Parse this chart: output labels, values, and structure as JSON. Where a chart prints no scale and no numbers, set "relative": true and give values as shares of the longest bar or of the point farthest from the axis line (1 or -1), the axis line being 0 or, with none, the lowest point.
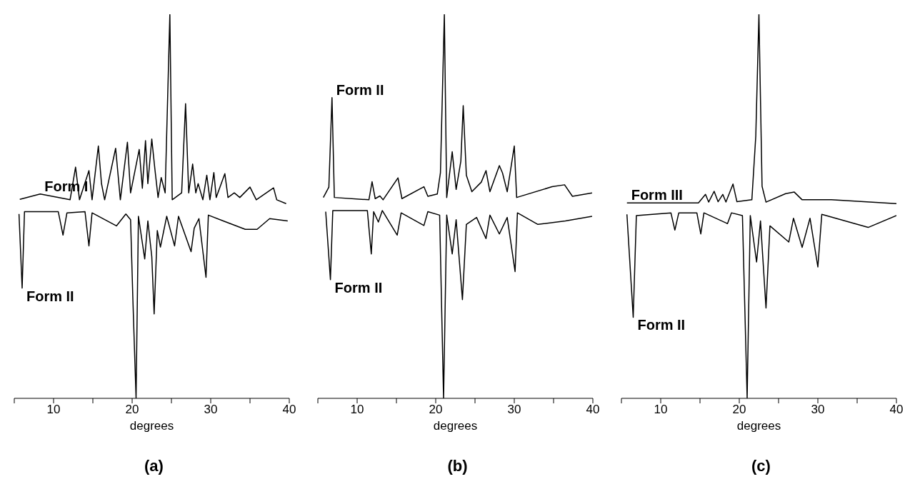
{
  "chart_data": [
    {
      "type": "line",
      "title": "(a)",
      "xlabel": "degrees",
      "relative": true,
      "xlim": [
        5,
        40
      ],
      "xticks": [
        {
          "value": 5,
          "label": null
        },
        10,
        {
          "value": 15,
          "label": null
        },
        20,
        {
          "value": 25,
          "label": null
        },
        30,
        {
          "value": 35,
          "label": null
        },
        40
      ],
      "series": [
        {
          "name": "Form I",
          "color": "#000000",
          "x": [
            5.7,
            8.3,
            12.1,
            12.8,
            13.3,
            14.5,
            14.9,
            15.7,
            16.1,
            16.5,
            17.9,
            18.5,
            19.4,
            19.8,
            20.9,
            21.3,
            21.7,
            22.0,
            22.5,
            22.9,
            23.3,
            23.7,
            24.2,
            24.8,
            25.1,
            26.3,
            26.8,
            27.2,
            27.7,
            28.1,
            28.4,
            29.0,
            29.5,
            29.9,
            30.4,
            30.7,
            31.8,
            32.2,
            33.0,
            33.7,
            35.0,
            35.8,
            38.0,
            38.4,
            39.6
          ],
          "values": [
            0.518,
            0.532,
            0.517,
            0.602,
            0.517,
            0.593,
            0.517,
            0.657,
            0.559,
            0.517,
            0.651,
            0.517,
            0.667,
            0.535,
            0.648,
            0.547,
            0.671,
            0.559,
            0.675,
            0.596,
            0.523,
            0.575,
            0.535,
            1,
            0.517,
            0.535,
            0.767,
            0.535,
            0.61,
            0.535,
            0.559,
            0.517,
            0.581,
            0.517,
            0.588,
            0.523,
            0.585,
            0.523,
            0.535,
            0.523,
            0.55,
            0.517,
            0.548,
            0.517,
            0.507
          ]
        },
        {
          "name": "Form II",
          "color": "#000000",
          "x": [
            5.6,
            6.0,
            6.3,
            10.6,
            11.2,
            11.7,
            14.0,
            14.5,
            14.9,
            18.0,
            19.2,
            19.8,
            20.1,
            20.5,
            20.8,
            21.6,
            22.0,
            22.5,
            22.8,
            23.2,
            23.6,
            24.4,
            25.4,
            25.9,
            27.5,
            27.9,
            28.5,
            29.4,
            29.7,
            31.6,
            34.4,
            35.9,
            37.5,
            39.8
          ],
          "values": [
            0.48,
            0.287,
            0.486,
            0.486,
            0.425,
            0.483,
            0.486,
            0.397,
            0.483,
            0.449,
            0.48,
            0.465,
            0.254,
            0,
            0.474,
            0.363,
            0.462,
            0.369,
            0.22,
            0.437,
            0.394,
            0.474,
            0.397,
            0.474,
            0.382,
            0.443,
            0.468,
            0.315,
            0.477,
            0.462,
            0.44,
            0.44,
            0.468,
            0.462
          ]
        }
      ]
    },
    {
      "type": "line",
      "title": "(b)",
      "xlabel": "degrees",
      "relative": true,
      "xlim": [
        5,
        40
      ],
      "xticks": [
        {
          "value": 5,
          "label": null
        },
        10,
        {
          "value": 15,
          "label": null
        },
        20,
        {
          "value": 25,
          "label": null
        },
        30,
        {
          "value": 35,
          "label": null
        },
        40
      ],
      "series": [
        {
          "name": "Form II",
          "color": "#000000",
          "x": [
            5.7,
            6.4,
            6.8,
            7.1,
            11.5,
            11.9,
            12.3,
            12.9,
            13.3,
            15.2,
            15.7,
            18.5,
            19.0,
            20.2,
            20.6,
            21.1,
            21.4,
            22.1,
            22.6,
            23.2,
            23.5,
            23.9,
            24.6,
            25.8,
            26.4,
            26.9,
            28.1,
            28.5,
            29.1,
            30.0,
            30.3,
            34.8,
            36.4,
            37.4,
            39.9
          ],
          "values": [
            0.523,
            0.55,
            0.783,
            0.523,
            0.517,
            0.564,
            0.52,
            0.527,
            0.517,
            0.574,
            0.52,
            0.551,
            0.526,
            0.532,
            0.587,
            1,
            0.523,
            0.642,
            0.544,
            0.618,
            0.762,
            0.581,
            0.538,
            0.563,
            0.593,
            0.538,
            0.606,
            0.587,
            0.538,
            0.657,
            0.523,
            0.551,
            0.556,
            0.526,
            0.535
          ]
        },
        {
          "name": "Form II",
          "color": "#000000",
          "x": [
            6.0,
            6.6,
            6.9,
            11.3,
            11.8,
            12.1,
            12.7,
            13.2,
            15.1,
            15.6,
            18.5,
            19.0,
            20.5,
            21.0,
            21.4,
            22.1,
            22.6,
            23.4,
            23.9,
            25.2,
            26.4,
            26.9,
            28.1,
            29.1,
            30.1,
            30.4,
            33.0,
            36.5,
            39.9
          ],
          "values": [
            0.486,
            0.309,
            0.489,
            0.489,
            0.376,
            0.486,
            0.459,
            0.489,
            0.425,
            0.483,
            0.45,
            0.486,
            0.477,
            0,
            0.477,
            0.376,
            0.465,
            0.257,
            0.453,
            0.471,
            0.416,
            0.477,
            0.428,
            0.471,
            0.33,
            0.483,
            0.453,
            0.462,
            0.474
          ]
        }
      ]
    },
    {
      "type": "line",
      "title": "(c)",
      "xlabel": "degrees",
      "relative": true,
      "xlim": [
        5,
        40
      ],
      "xticks": [
        {
          "value": 5,
          "label": null
        },
        10,
        {
          "value": 15,
          "label": null
        },
        20,
        {
          "value": 25,
          "label": null
        },
        30,
        {
          "value": 35,
          "label": null
        },
        40
      ],
      "series": [
        {
          "name": "Form III",
          "color": "#000000",
          "x": [
            5.7,
            14.8,
            15.7,
            16.1,
            16.8,
            17.3,
            17.9,
            18.3,
            19.2,
            19.7,
            21.6,
            22.1,
            22.5,
            22.9,
            23.4,
            25.9,
            27.0,
            28.0,
            31.7,
            40
          ],
          "values": [
            0.509,
            0.509,
            0.531,
            0.511,
            0.539,
            0.512,
            0.531,
            0.511,
            0.558,
            0.512,
            0.517,
            0.683,
            1,
            0.552,
            0.511,
            0.533,
            0.537,
            0.517,
            0.517,
            0.507
          ]
        },
        {
          "name": "Form II",
          "color": "#000000",
          "x": [
            5.7,
            6.5,
            6.9,
            11.3,
            11.8,
            12.3,
            14.6,
            15.1,
            15.5,
            18.5,
            19.0,
            20.4,
            21.0,
            21.4,
            22.2,
            22.7,
            23.4,
            23.9,
            26.3,
            26.9,
            28.0,
            29.0,
            30.0,
            30.5,
            34.7,
            36.4,
            40
          ],
          "values": [
            0.479,
            0.211,
            0.476,
            0.483,
            0.438,
            0.483,
            0.483,
            0.428,
            0.483,
            0.455,
            0.483,
            0.476,
            0,
            0.476,
            0.355,
            0.462,
            0.235,
            0.449,
            0.407,
            0.469,
            0.393,
            0.469,
            0.342,
            0.479,
            0.455,
            0.445,
            0.476
          ]
        }
      ]
    }
  ]
}
